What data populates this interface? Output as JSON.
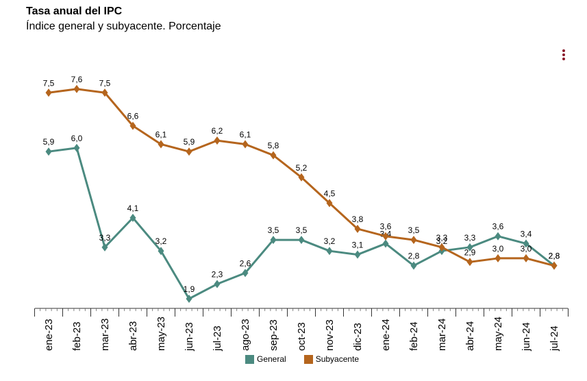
{
  "title": "Tasa anual del IPC",
  "subtitle": "Índice general y subyacente. Porcentaje",
  "menu_icon": "more-vertical-icon",
  "chart_data": {
    "type": "line",
    "title": "Tasa anual del IPC",
    "subtitle": "Índice general y subyacente. Porcentaje",
    "xlabel": "",
    "ylabel": "",
    "ylim": [
      1.5,
      8.2
    ],
    "grid": false,
    "legend_position": "bottom",
    "categories": [
      "ene-23",
      "feb-23",
      "mar-23",
      "abr-23",
      "may-23",
      "jun-23",
      "jul-23",
      "ago-23",
      "sep-23",
      "oct-23",
      "nov-23",
      "dic-23",
      "ene-24",
      "feb-24",
      "mar-24",
      "abr-24",
      "may-24",
      "jun-24",
      "jul-24"
    ],
    "series": [
      {
        "name": "General",
        "color": "#4b8a80",
        "values": [
          5.9,
          6.0,
          3.3,
          4.1,
          3.2,
          1.9,
          2.3,
          2.6,
          3.5,
          3.5,
          3.2,
          3.1,
          3.4,
          2.8,
          3.2,
          3.3,
          3.6,
          3.4,
          2.8
        ],
        "labels": [
          "5,9",
          "6,0",
          "3,3",
          "4,1",
          "3,2",
          "1,9",
          "2,3",
          "2,6",
          "3,5",
          "3,5",
          "3,2",
          "3,1",
          "3,4",
          "2,8",
          "3,2",
          "3,3",
          "3,6",
          "3,4",
          "2,8"
        ]
      },
      {
        "name": "Subyacente",
        "color": "#b5651d",
        "values": [
          7.5,
          7.6,
          7.5,
          6.6,
          6.1,
          5.9,
          6.2,
          6.1,
          5.8,
          5.2,
          4.5,
          3.8,
          3.6,
          3.5,
          3.3,
          2.9,
          3.0,
          3.0,
          2.8
        ],
        "labels": [
          "7,5",
          "7,6",
          "7,5",
          "6,6",
          "6,1",
          "5,9",
          "6,2",
          "6,1",
          "5,8",
          "5,2",
          "4,5",
          "3,8",
          "3,6",
          "3,5",
          "3,3",
          "2,9",
          "3,0",
          "3,0",
          "2,8"
        ]
      }
    ]
  }
}
